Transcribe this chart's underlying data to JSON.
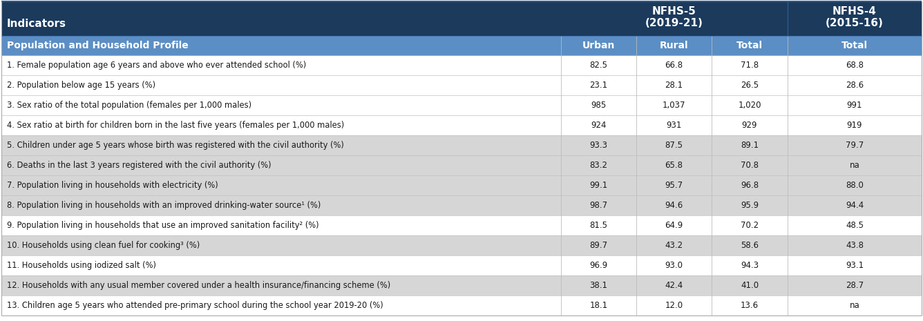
{
  "header_bg": "#1b3a5c",
  "header_text_color": "#ffffff",
  "subheader_bg": "#5b8ec4",
  "subheader_text_color": "#ffffff",
  "white_row_bg": "#ffffff",
  "gray_row_bg": "#d6d6d6",
  "text_color": "#1a1a1a",
  "fig_bg": "#ffffff",
  "col_group_header1": "NFHS-5\n(2019-21)",
  "col_group_header2": "NFHS-4\n(2015-16)",
  "subheader": "Population and Household Profile",
  "subcol_labels": [
    "Urban",
    "Rural",
    "Total",
    "Total"
  ],
  "indicator_label": "Indicators",
  "rows": [
    {
      "label": "1. Female population age 6 years and above who ever attended school (%)",
      "urban": "82.5",
      "rural": "66.8",
      "total5": "71.8",
      "total4": "68.8",
      "gray": false
    },
    {
      "label": "2. Population below age 15 years (%)",
      "urban": "23.1",
      "rural": "28.1",
      "total5": "26.5",
      "total4": "28.6",
      "gray": false
    },
    {
      "label": "3. Sex ratio of the total population (females per 1,000 males)",
      "urban": "985",
      "rural": "1,037",
      "total5": "1,020",
      "total4": "991",
      "gray": false
    },
    {
      "label": "4. Sex ratio at birth for children born in the last five years (females per 1,000 males)",
      "urban": "924",
      "rural": "931",
      "total5": "929",
      "total4": "919",
      "gray": false
    },
    {
      "label": "5. Children under age 5 years whose birth was registered with the civil authority (%)",
      "urban": "93.3",
      "rural": "87.5",
      "total5": "89.1",
      "total4": "79.7",
      "gray": true
    },
    {
      "label": "6. Deaths in the last 3 years registered with the civil authority (%)",
      "urban": "83.2",
      "rural": "65.8",
      "total5": "70.8",
      "total4": "na",
      "gray": true
    },
    {
      "label": "7. Population living in households with electricity (%)",
      "urban": "99.1",
      "rural": "95.7",
      "total5": "96.8",
      "total4": "88.0",
      "gray": true
    },
    {
      "label": "8. Population living in households with an improved drinking-water source¹ (%)",
      "urban": "98.7",
      "rural": "94.6",
      "total5": "95.9",
      "total4": "94.4",
      "gray": true
    },
    {
      "label": "9. Population living in households that use an improved sanitation facility² (%)",
      "urban": "81.5",
      "rural": "64.9",
      "total5": "70.2",
      "total4": "48.5",
      "gray": false
    },
    {
      "label": "10. Households using clean fuel for cooking³ (%)",
      "urban": "89.7",
      "rural": "43.2",
      "total5": "58.6",
      "total4": "43.8",
      "gray": true
    },
    {
      "label": "11. Households using iodized salt (%)",
      "urban": "96.9",
      "rural": "93.0",
      "total5": "94.3",
      "total4": "93.1",
      "gray": false
    },
    {
      "label": "12. Households with any usual member covered under a health insurance/financing scheme (%)",
      "urban": "38.1",
      "rural": "42.4",
      "total5": "41.0",
      "total4": "28.7",
      "gray": true
    },
    {
      "label": "13. Children age 5 years who attended pre-primary school during the school year 2019-20 (%)",
      "urban": "18.1",
      "rural": "12.0",
      "total5": "13.6",
      "total4": "na",
      "gray": false
    }
  ]
}
